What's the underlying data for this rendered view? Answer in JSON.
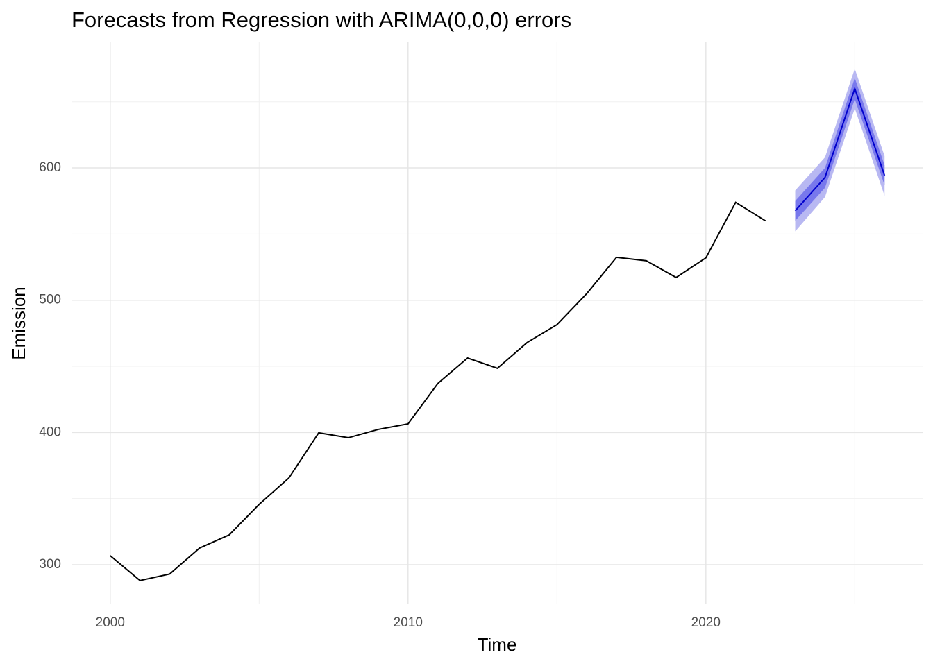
{
  "chart_data": {
    "type": "line",
    "title": "Forecasts from Regression with ARIMA(0,0,0) errors",
    "x_label": "Time",
    "y_label": "Emission",
    "xlim": [
      1998.7,
      2027.3
    ],
    "ylim": [
      270.6,
      695.5
    ],
    "xticks": [
      2000,
      2010,
      2020
    ],
    "yticks": [
      300,
      400,
      500,
      600
    ],
    "x_minor_grid": [
      2005,
      2015,
      2025
    ],
    "y_minor_grid": [
      350,
      450,
      550,
      650
    ],
    "grid": true,
    "series": [
      {
        "color": "#000000",
        "x": [
          2000,
          2001,
          2002,
          2003,
          2004,
          2005,
          2006,
          2007,
          2008,
          2009,
          2010,
          2011,
          2012,
          2013,
          2014,
          2015,
          2016,
          2017,
          2018,
          2019,
          2020,
          2021,
          2022
        ],
        "values": [
          306.8,
          288,
          293,
          312.6,
          322.6,
          345.6,
          365.6,
          399.7,
          396,
          402.3,
          406.5,
          437,
          456.3,
          448.5,
          468,
          481.5,
          505,
          532.4,
          529.8,
          517.2,
          532,
          574,
          560
        ]
      },
      {
        "color": "#0000cc",
        "x": [
          2023,
          2024,
          2025,
          2026
        ],
        "values": [
          567.6,
          592.8,
          660,
          594.3
        ]
      }
    ],
    "bands": [
      {
        "color": "#b8b8f2",
        "x": [
          2023,
          2024,
          2025,
          2026
        ],
        "lower": [
          552,
          578,
          645,
          579
        ],
        "upper": [
          583,
          608,
          675,
          609
        ]
      },
      {
        "color": "#7878ec",
        "x": [
          2023,
          2024,
          2025,
          2026
        ],
        "lower": [
          560,
          585,
          652,
          587
        ],
        "upper": [
          575,
          600,
          668,
          602
        ]
      }
    ]
  }
}
